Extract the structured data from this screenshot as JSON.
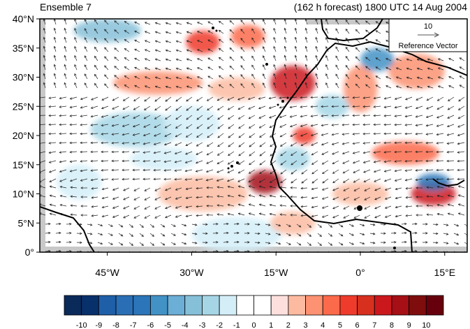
{
  "header": {
    "left_title": "Ensemble 7",
    "right_title": "(162 h forecast) 1800 UTC 14 Aug 2004"
  },
  "map": {
    "lon_range": [
      -57,
      19
    ],
    "lat_range": [
      0,
      40
    ],
    "lat_ticks": [
      {
        "value": 40,
        "label": "40°N"
      },
      {
        "value": 35,
        "label": "35°N"
      },
      {
        "value": 30,
        "label": "30°N"
      },
      {
        "value": 25,
        "label": "25°N"
      },
      {
        "value": 20,
        "label": "20°N"
      },
      {
        "value": 15,
        "label": "15°N"
      },
      {
        "value": 10,
        "label": "10°N"
      },
      {
        "value": 5,
        "label": "5°N"
      },
      {
        "value": 0,
        "label": "0°"
      }
    ],
    "lon_ticks": [
      {
        "value": -45,
        "label": "45°W"
      },
      {
        "value": -30,
        "label": "30°W"
      },
      {
        "value": -15,
        "label": "15°W"
      },
      {
        "value": 0,
        "label": "0°"
      },
      {
        "value": 15,
        "label": "15°E"
      }
    ]
  },
  "reference_vector": {
    "magnitude": "10",
    "label": "Reference Vector"
  },
  "colorbar": {
    "labels": [
      "-10",
      "-9",
      "-8",
      "-7",
      "-6",
      "-5",
      "-4",
      "-3",
      "-2",
      "-1",
      "0",
      "1",
      "2",
      "3",
      "4",
      "5",
      "6",
      "7",
      "8",
      "9",
      "10"
    ],
    "colors": [
      "#0a2a5a",
      "#08306b",
      "#1f5fa8",
      "#2a6fb5",
      "#2b75b8",
      "#4292c6",
      "#6baed6",
      "#86c0d8",
      "#a6d6e6",
      "#d4eef8",
      "#ffffff",
      "#ffffff",
      "#fde0dd",
      "#fcbba1",
      "#fc9272",
      "#fb6a4a",
      "#ef3b2c",
      "#d7301f",
      "#cb181d",
      "#a50f15",
      "#7f0d0d",
      "#67000d"
    ]
  },
  "anomalies": [
    {
      "lon": -12,
      "lat": 29,
      "rx": 4,
      "ry": 3,
      "value": 7
    },
    {
      "lon": -17,
      "lat": 12,
      "rx": 3,
      "ry": 2,
      "value": 8
    },
    {
      "lon": 13,
      "lat": 10,
      "rx": 4,
      "ry": 2,
      "value": 7
    },
    {
      "lon": -28,
      "lat": 36,
      "rx": 3,
      "ry": 2,
      "value": 5
    },
    {
      "lon": -36,
      "lat": 29,
      "rx": 8,
      "ry": 2,
      "value": 3
    },
    {
      "lon": -22,
      "lat": 28,
      "rx": 5,
      "ry": 2,
      "value": 2
    },
    {
      "lon": 8,
      "lat": 17,
      "rx": 6,
      "ry": 2,
      "value": 4
    },
    {
      "lon": -10,
      "lat": 20,
      "rx": 2,
      "ry": 1.5,
      "value": 5
    },
    {
      "lon": -28,
      "lat": 10,
      "rx": 8,
      "ry": 3,
      "value": 2
    },
    {
      "lon": 0,
      "lat": 28,
      "rx": 3,
      "ry": 4,
      "value": 3
    },
    {
      "lon": -20,
      "lat": 37,
      "rx": 3,
      "ry": 2,
      "value": 4
    },
    {
      "lon": 10,
      "lat": 31,
      "rx": 5,
      "ry": 3,
      "value": 3
    },
    {
      "lon": -45,
      "lat": 38,
      "rx": 6,
      "ry": 2,
      "value": -4
    },
    {
      "lon": 3,
      "lat": 33,
      "rx": 3,
      "ry": 2,
      "value": -6
    },
    {
      "lon": 13,
      "lat": 12,
      "rx": 3,
      "ry": 1.5,
      "value": -7
    },
    {
      "lon": -40,
      "lat": 21,
      "rx": 8,
      "ry": 3,
      "value": -3
    },
    {
      "lon": -30,
      "lat": 22,
      "rx": 5,
      "ry": 3,
      "value": -2
    },
    {
      "lon": -22,
      "lat": 3,
      "rx": 8,
      "ry": 3,
      "value": -2
    },
    {
      "lon": -12,
      "lat": 16,
      "rx": 3,
      "ry": 2,
      "value": -3
    },
    {
      "lon": -5,
      "lat": 25,
      "rx": 3,
      "ry": 2,
      "value": -3
    },
    {
      "lon": -50,
      "lat": 12,
      "rx": 4,
      "ry": 3,
      "value": -2
    },
    {
      "lon": -35,
      "lat": 16,
      "rx": 6,
      "ry": 2,
      "value": -2
    },
    {
      "lon": 0,
      "lat": 10,
      "rx": 5,
      "ry": 2,
      "value": 2
    },
    {
      "lon": -12,
      "lat": 5,
      "rx": 4,
      "ry": 2,
      "value": 2
    }
  ]
}
